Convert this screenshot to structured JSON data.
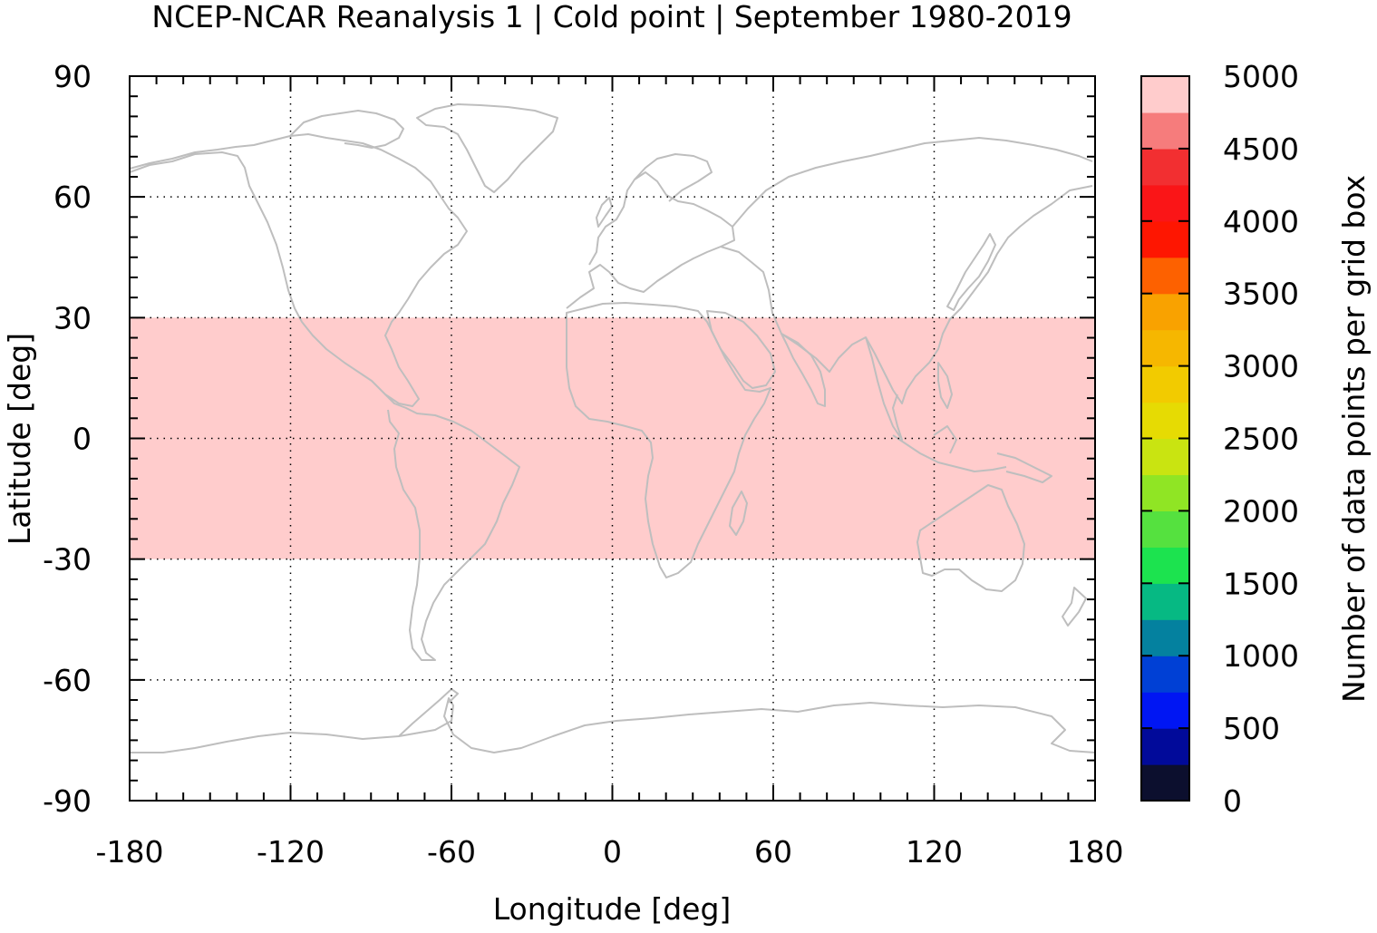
{
  "chart_data": {
    "type": "heatmap",
    "title": "NCEP-NCAR Reanalysis 1 | Cold point | September 1980-2019",
    "xlabel": "Longitude [deg]",
    "ylabel": "Latitude [deg]",
    "xlim": [
      -180,
      180
    ],
    "ylim": [
      -90,
      90
    ],
    "x_ticks": [
      "-180",
      "-120",
      "-60",
      "0",
      "60",
      "120",
      "180"
    ],
    "y_ticks": [
      "90",
      "60",
      "30",
      "0",
      "-30",
      "-60",
      "-90"
    ],
    "grid": true,
    "coastlines": true,
    "coastline_color": "#bebebe",
    "data_band": {
      "lat_min": -30,
      "lat_max": 30,
      "lon_min": -180,
      "lon_max": 180,
      "value": 5000,
      "color": "#ffcccc"
    },
    "colorbar": {
      "label": "Number of data points per grid box",
      "range": [
        0,
        5000
      ],
      "tick_labels": [
        "0",
        "500",
        "1000",
        "1500",
        "2000",
        "2500",
        "3000",
        "3500",
        "4000",
        "4500",
        "5000"
      ],
      "colors": [
        "#0c0f2e",
        "#010a9a",
        "#0016f3",
        "#0040d5",
        "#04819f",
        "#06b983",
        "#1ce34f",
        "#55e13f",
        "#90e524",
        "#c9e411",
        "#e6db03",
        "#f2cb00",
        "#f6b700",
        "#f9a200",
        "#fd6100",
        "#fe1601",
        "#fa1517",
        "#f22f31",
        "#f67c7c",
        "#ffcccc"
      ]
    }
  }
}
